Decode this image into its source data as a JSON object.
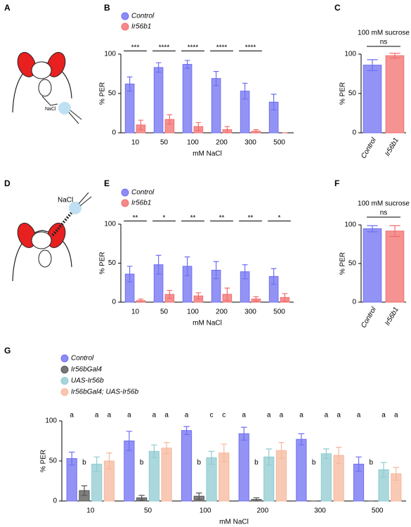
{
  "panel_labels": [
    "A",
    "B",
    "C",
    "D",
    "E",
    "F",
    "G"
  ],
  "diagram_labels": [
    "NaCl",
    "NaCl"
  ],
  "chart_data": [
    {
      "type": "bar",
      "ylabel": "% PER",
      "xlabel": "mM NaCl",
      "categories": [
        "10",
        "50",
        "100",
        "200",
        "300",
        "500"
      ],
      "series": [
        {
          "name": "Control",
          "color": "#6f6ff2",
          "values": [
            62,
            83,
            87,
            69,
            53,
            39
          ],
          "errors": [
            9,
            6,
            5,
            9,
            10,
            10
          ]
        },
        {
          "name": "Ir56b1",
          "color": "#f26d6d",
          "values": [
            10,
            17,
            8,
            4,
            2,
            0
          ],
          "errors": [
            6,
            6,
            5,
            4,
            2,
            0
          ]
        }
      ],
      "significance": [
        "***",
        "****",
        "****",
        "****",
        "****",
        null
      ],
      "ylim": [
        0,
        100
      ],
      "yticks": [
        0,
        50,
        100
      ]
    },
    {
      "type": "bar",
      "title": "100 mM sucrose",
      "annotation": "ns",
      "ylabel": "% PER",
      "categories": [
        "Control",
        "Ir56b1"
      ],
      "values": [
        86,
        98
      ],
      "errors": [
        7,
        3
      ],
      "colors": [
        "#6f6ff2",
        "#f26d6d"
      ],
      "ylim": [
        0,
        100
      ],
      "yticks": [
        0,
        50,
        100
      ]
    },
    {
      "type": "bar",
      "ylabel": "% PER",
      "xlabel": "mM NaCl",
      "categories": [
        "10",
        "50",
        "100",
        "200",
        "300",
        "500"
      ],
      "series": [
        {
          "name": "Control",
          "color": "#6f6ff2",
          "values": [
            36,
            48,
            46,
            41,
            39,
            33
          ],
          "errors": [
            10,
            12,
            12,
            11,
            9,
            10
          ]
        },
        {
          "name": "Ir56b1",
          "color": "#f26d6d",
          "values": [
            2,
            10,
            8,
            10,
            4,
            6
          ],
          "errors": [
            2,
            5,
            4,
            8,
            3,
            5
          ]
        }
      ],
      "significance": [
        "**",
        "*",
        "**",
        "**",
        "**",
        "*"
      ],
      "ylim": [
        0,
        100
      ],
      "yticks": [
        0,
        50,
        100
      ]
    },
    {
      "type": "bar",
      "title": "100 mM sucrose",
      "annotation": "ns",
      "ylabel": "% PER",
      "categories": [
        "Control",
        "Ir56b1"
      ],
      "values": [
        95,
        92
      ],
      "errors": [
        4,
        7
      ],
      "colors": [
        "#6f6ff2",
        "#f26d6d"
      ],
      "ylim": [
        0,
        100
      ],
      "yticks": [
        0,
        50,
        100
      ]
    },
    {
      "type": "bar",
      "ylabel": "% PER",
      "xlabel": "mM NaCl",
      "categories": [
        "10",
        "50",
        "100",
        "200",
        "300",
        "500"
      ],
      "series": [
        {
          "name": "Control",
          "color": "#6f6ff2",
          "values": [
            53,
            75,
            88,
            84,
            77,
            46
          ],
          "errors": [
            8,
            12,
            5,
            8,
            7,
            9
          ],
          "letters": [
            "a",
            "a",
            "a",
            "a",
            "a",
            "a"
          ]
        },
        {
          "name": "Ir56bGal4",
          "color": "#555555",
          "values": [
            13,
            4,
            6,
            2,
            0,
            0
          ],
          "errors": [
            6,
            3,
            4,
            2,
            0,
            0
          ],
          "letters": [
            "b",
            "b",
            "b",
            "b",
            "b",
            "b"
          ]
        },
        {
          "name": "UAS-Ir56b",
          "color": "#8fcbd1",
          "values": [
            46,
            62,
            54,
            55,
            59,
            39
          ],
          "errors": [
            9,
            8,
            8,
            10,
            6,
            9
          ],
          "letters": [
            "a",
            "a",
            "c",
            "a",
            "a",
            "a"
          ]
        },
        {
          "name": "Ir56bGal4; UAS-Ir56b",
          "color": "#f6b89c",
          "values": [
            50,
            66,
            60,
            63,
            57,
            34
          ],
          "errors": [
            10,
            7,
            11,
            10,
            10,
            8
          ],
          "letters": [
            "a",
            "a",
            "c",
            "a",
            "a",
            "a"
          ]
        }
      ],
      "ylim": [
        0,
        100
      ],
      "yticks": [
        0,
        50,
        100
      ]
    }
  ]
}
